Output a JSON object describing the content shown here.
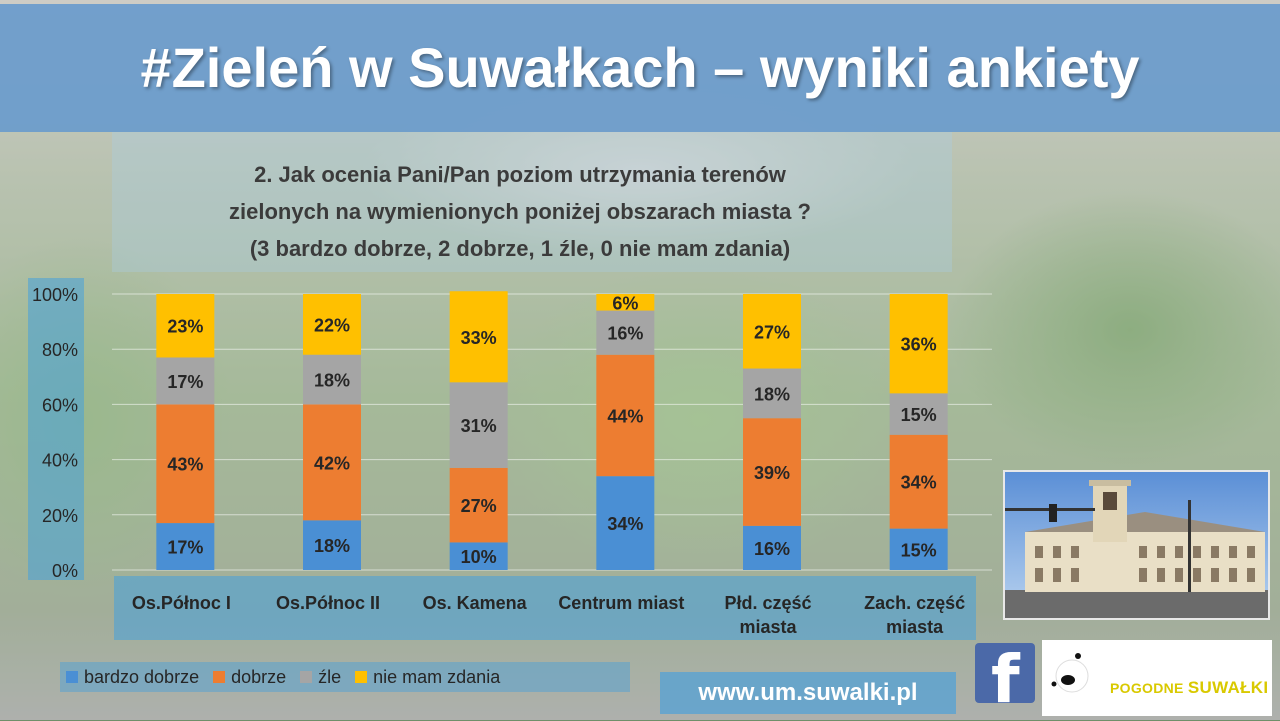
{
  "header": {
    "title": "#Zieleń w Suwałkach – wyniki ankiety"
  },
  "question": {
    "line1": "2. Jak ocenia Pani/Pan poziom utrzymania terenów",
    "line2": "zielonych na wymienionych poniżej obszarach miasta ?",
    "line3": "(3 bardzo dobrze, 2 dobrze, 1 źle, 0 nie mam zdania)"
  },
  "footer": {
    "url": "www.um.suwalki.pl",
    "logo_pogodne": "POGODNE",
    "logo_suwalki": "SUWAŁKI"
  },
  "colors": {
    "bardzo_dobrze": "#4a8fd4",
    "dobrze": "#ed7d31",
    "zle": "#a5a5a5",
    "nie_mam_zdania": "#ffc000"
  },
  "chart_data": {
    "type": "bar",
    "stacked": true,
    "percent": true,
    "categories": [
      [
        "Os.Północ I"
      ],
      [
        "Os.Północ II"
      ],
      [
        "Os. Kamena"
      ],
      [
        "Centrum miast"
      ],
      [
        "Płd. część",
        "miasta"
      ],
      [
        "Zach. część",
        "miasta"
      ]
    ],
    "series": [
      {
        "name": "bardzo dobrze",
        "color": "#4a8fd4",
        "values": [
          17,
          18,
          10,
          34,
          16,
          15
        ]
      },
      {
        "name": "dobrze",
        "color": "#ed7d31",
        "values": [
          43,
          42,
          27,
          44,
          39,
          34
        ]
      },
      {
        "name": "źle",
        "color": "#a5a5a5",
        "values": [
          17,
          18,
          31,
          16,
          18,
          15
        ]
      },
      {
        "name": "nie mam zdania",
        "color": "#ffc000",
        "values": [
          23,
          22,
          33,
          6,
          27,
          36
        ]
      }
    ],
    "y_ticks": [
      "0%",
      "20%",
      "40%",
      "60%",
      "80%",
      "100%"
    ],
    "ylim": [
      0,
      100
    ],
    "grid": true,
    "legend_position": "bottom-left"
  }
}
